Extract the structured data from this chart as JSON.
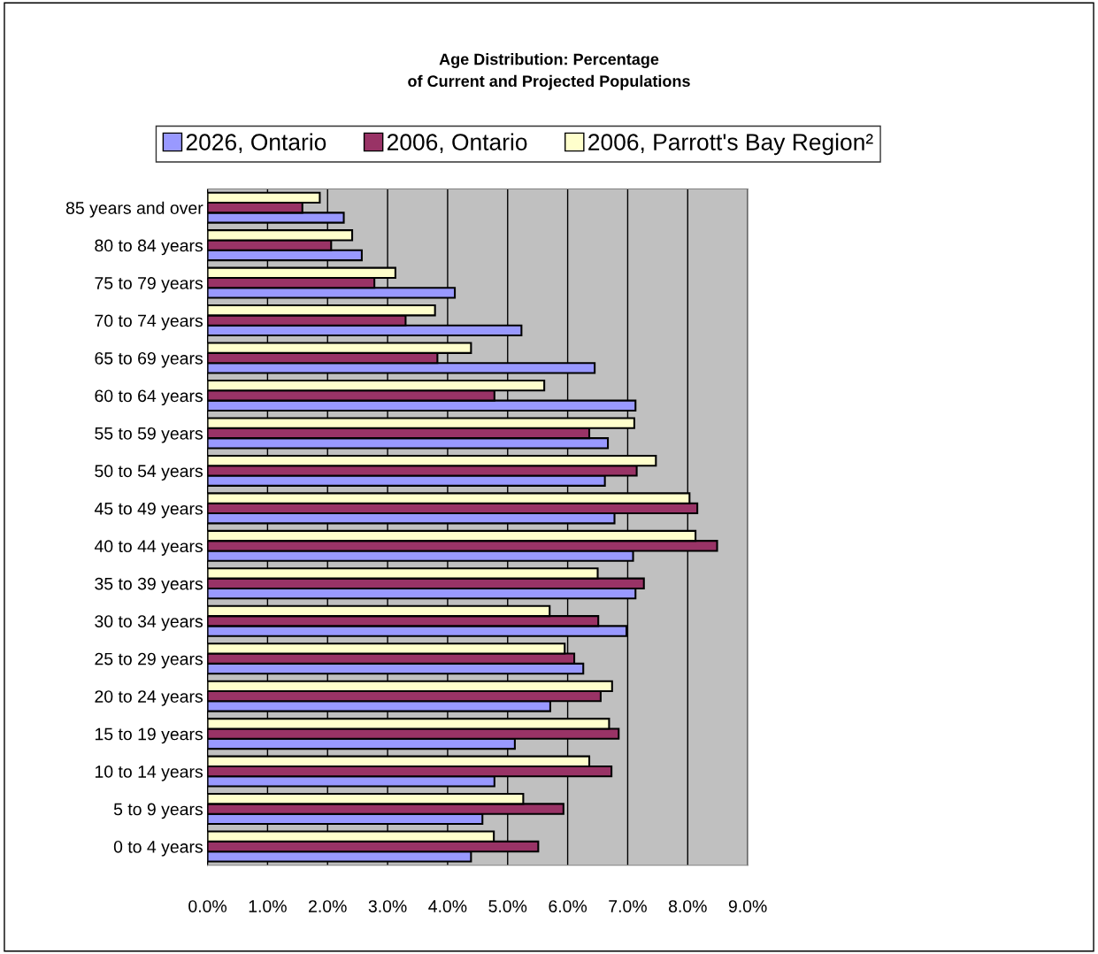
{
  "chart_data": {
    "type": "bar",
    "orientation": "horizontal",
    "title": "Age Distribution: Percentage\nof Current and Projected Populations",
    "categories": [
      "85 years and over",
      "80 to 84 years",
      "75 to 79 years",
      "70 to 74 years",
      "65 to 69 years",
      "60 to 64 years",
      "55 to 59 years",
      "50 to 54 years",
      "45 to 49 years",
      "40 to 44 years",
      "35 to 39 years",
      "30 to 34 years",
      "25 to 29 years",
      "20 to 24 years",
      "15 to 19 years",
      "10 to 14 years",
      "5 to 9 years",
      "0 to 4 years"
    ],
    "series": [
      {
        "name": "2026, Ontario",
        "color": "#9999ff",
        "values": [
          2.27,
          2.57,
          4.12,
          5.23,
          6.45,
          7.13,
          6.67,
          6.62,
          6.78,
          7.09,
          7.13,
          6.98,
          6.26,
          5.71,
          5.12,
          4.78,
          4.58,
          4.39
        ]
      },
      {
        "name": "2006, Ontario",
        "color": "#993366",
        "values": [
          1.58,
          2.06,
          2.78,
          3.3,
          3.83,
          4.78,
          6.36,
          7.15,
          8.16,
          8.49,
          7.27,
          6.51,
          6.11,
          6.55,
          6.85,
          6.73,
          5.93,
          5.51
        ]
      },
      {
        "name": "2006, Parrott's Bay Region²",
        "color": "#ffffcc",
        "values": [
          1.87,
          2.41,
          3.13,
          3.79,
          4.39,
          5.61,
          7.11,
          7.47,
          8.03,
          8.13,
          6.5,
          5.7,
          5.95,
          6.74,
          6.69,
          6.36,
          5.26,
          4.77
        ]
      }
    ],
    "xlim": [
      0,
      9
    ],
    "xticks": [
      {
        "value": 0,
        "label": "0.0%"
      },
      {
        "value": 1,
        "label": "1.0%"
      },
      {
        "value": 2,
        "label": "2.0%"
      },
      {
        "value": 3,
        "label": "3.0%"
      },
      {
        "value": 4,
        "label": "4.0%"
      },
      {
        "value": 5,
        "label": "5.0%"
      },
      {
        "value": 6,
        "label": "6.0%"
      },
      {
        "value": 7,
        "label": "7.0%"
      },
      {
        "value": 8,
        "label": "8.0%"
      },
      {
        "value": 9,
        "label": "9.0%"
      }
    ],
    "grid": "x",
    "legend": "top"
  }
}
